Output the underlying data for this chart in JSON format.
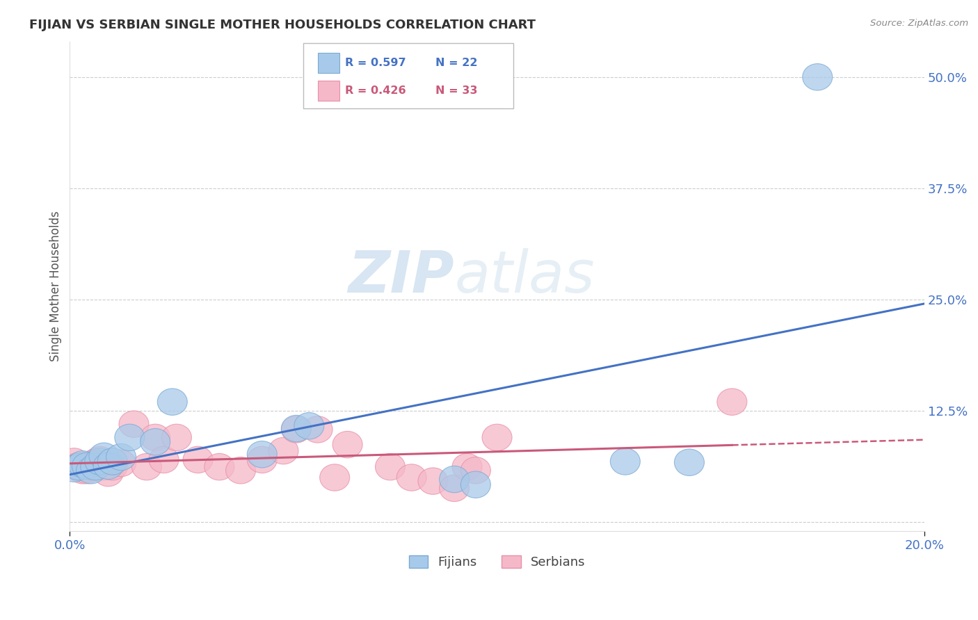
{
  "title": "FIJIAN VS SERBIAN SINGLE MOTHER HOUSEHOLDS CORRELATION CHART",
  "source": "Source: ZipAtlas.com",
  "ylabel": "Single Mother Households",
  "yticks": [
    0.0,
    0.125,
    0.25,
    0.375,
    0.5
  ],
  "ytick_labels": [
    "",
    "12.5%",
    "25.0%",
    "37.5%",
    "50.0%"
  ],
  "xlim": [
    0.0,
    0.2
  ],
  "ylim": [
    -0.01,
    0.54
  ],
  "fijian_color": "#A8CAEA",
  "serbian_color": "#F5B8C8",
  "fijian_edge_color": "#7AAAD4",
  "serbian_edge_color": "#E890AA",
  "fijian_line_color": "#4472C4",
  "serbian_line_color": "#C9597A",
  "legend_R_fijian": "R = 0.597",
  "legend_N_fijian": "N = 22",
  "legend_R_serbian": "R = 0.426",
  "legend_N_serbian": "N = 33",
  "fijian_x": [
    0.001,
    0.002,
    0.003,
    0.004,
    0.005,
    0.006,
    0.007,
    0.008,
    0.009,
    0.01,
    0.012,
    0.014,
    0.02,
    0.024,
    0.045,
    0.053,
    0.056,
    0.09,
    0.095,
    0.13,
    0.145,
    0.175
  ],
  "fijian_y": [
    0.06,
    0.062,
    0.065,
    0.063,
    0.058,
    0.062,
    0.068,
    0.074,
    0.063,
    0.068,
    0.073,
    0.095,
    0.09,
    0.135,
    0.076,
    0.105,
    0.108,
    0.048,
    0.042,
    0.068,
    0.067,
    0.5
  ],
  "serbian_x": [
    0.001,
    0.002,
    0.003,
    0.004,
    0.005,
    0.006,
    0.007,
    0.008,
    0.009,
    0.01,
    0.012,
    0.015,
    0.018,
    0.02,
    0.022,
    0.025,
    0.03,
    0.035,
    0.04,
    0.045,
    0.05,
    0.053,
    0.058,
    0.062,
    0.065,
    0.075,
    0.08,
    0.085,
    0.09,
    0.093,
    0.095,
    0.1,
    0.155
  ],
  "serbian_y": [
    0.068,
    0.063,
    0.058,
    0.058,
    0.062,
    0.067,
    0.07,
    0.062,
    0.055,
    0.062,
    0.066,
    0.11,
    0.062,
    0.095,
    0.07,
    0.095,
    0.07,
    0.062,
    0.058,
    0.07,
    0.08,
    0.104,
    0.104,
    0.05,
    0.087,
    0.062,
    0.05,
    0.046,
    0.038,
    0.062,
    0.058,
    0.095,
    0.135
  ],
  "background_color": "#FFFFFF",
  "grid_color": "#CCCCCC",
  "title_color": "#333333",
  "tick_label_color": "#4472C4",
  "watermark_text": "ZIPatlas",
  "watermark_color": "#D5E8F5",
  "legend_box_color": "#FFFFFF",
  "legend_border_color": "#CCCCCC"
}
